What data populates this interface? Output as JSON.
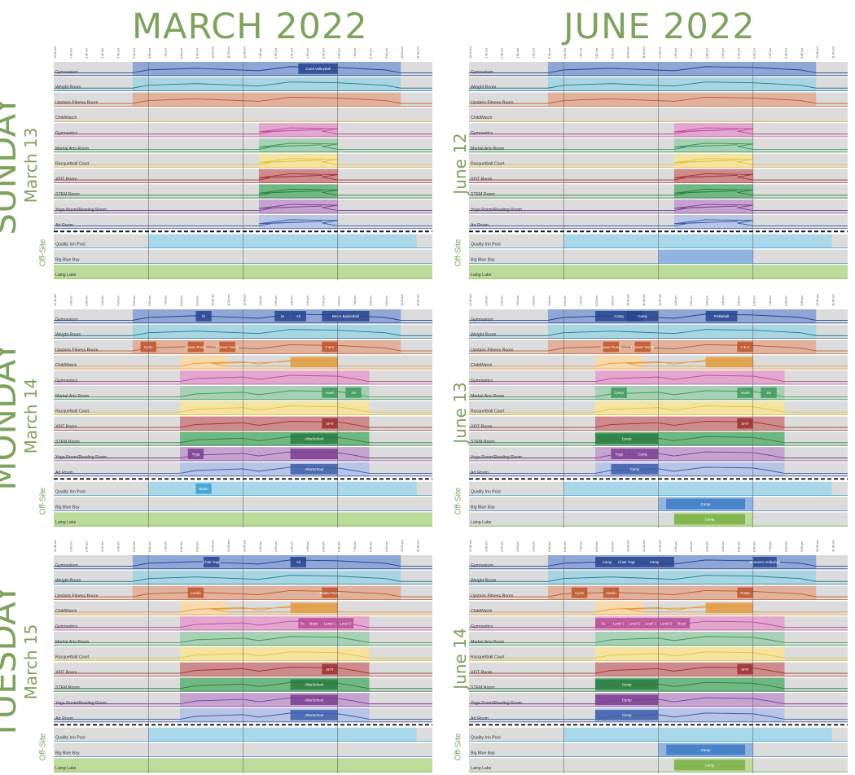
{
  "months": [
    {
      "label": "MARCH 2022"
    },
    {
      "label": "JUNE 2022"
    }
  ],
  "days": [
    {
      "name": "SUNDAY",
      "march_date": "March 13",
      "june_date": "June 12"
    },
    {
      "name": "MONDAY",
      "march_date": "March 14",
      "june_date": "June 13"
    },
    {
      "name": "TUESDAY",
      "march_date": "March 15",
      "june_date": "June 14"
    }
  ],
  "offsite_label": "Off-Site",
  "colors": {
    "gym": "#8ea7d6",
    "gym_dark": "#27448e",
    "weight": "#a8d5e2",
    "weight_dark": "#1e7a96",
    "fitness": "#e0b29c",
    "fitness_dark": "#c0542a",
    "childwatch": "#f7d9ab",
    "childwatch_dark": "#e39b3c",
    "gymnastics": "#e3a6cf",
    "gymnastics_dark": "#b84c95",
    "martial": "#a7d0b5",
    "martial_dark": "#3e9a5c",
    "racquet": "#f4e4a0",
    "racquet_dark": "#e2c23c",
    "xfit": "#cf8b8b",
    "xfit_dark": "#9e2f2f",
    "stem": "#6fb882",
    "stem_dark": "#2c7a41",
    "yoga": "#c5a3d0",
    "yoga_dark": "#7a3e91",
    "art": "#b7c5e6",
    "art_dark": "#3d5da8",
    "pool": "#a8d8ea",
    "pool_dark": "#3aa0d0",
    "bay": "#8fb5e0",
    "bay_dark": "#3d7ac4",
    "lake": "#bcdc9c",
    "lake_dark": "#7ab045",
    "row_bg": "#dcdcdc",
    "title_green": "#7da35c"
  },
  "chart_data": {
    "type": "timeline",
    "time_axis": {
      "start_hour": 0,
      "end_hour": 24,
      "tick_labels": [
        "12:00 am",
        "1:00 am",
        "2:00 am",
        "3:00 am",
        "4:00 am",
        "5:00 am",
        "6:00 am",
        "7:00 am",
        "8:00 am",
        "9:00 am",
        "10:00 am",
        "11:00 am",
        "12:00 pm",
        "1:00 pm",
        "2:00 pm",
        "3:00 pm",
        "4:00 pm",
        "5:00 pm",
        "6:00 pm",
        "7:00 pm",
        "8:00 pm",
        "9:00 pm",
        "10:00 pm",
        "11:00 pm"
      ]
    },
    "rooms": [
      {
        "key": "gym",
        "label": "Gymnasium"
      },
      {
        "key": "weight",
        "label": "Weight Room"
      },
      {
        "key": "fitness",
        "label": "Upstairs Fitness Room"
      },
      {
        "key": "childwatch",
        "label": "ChildWatch"
      },
      {
        "key": "gymnastics",
        "label": "Gymnastics"
      },
      {
        "key": "martial",
        "label": "Martial Arts Room"
      },
      {
        "key": "racquet",
        "label": "Racquetball Court"
      },
      {
        "key": "xfit",
        "label": "XFIT Room"
      },
      {
        "key": "stem",
        "label": "STEM Room"
      },
      {
        "key": "yoga",
        "label": "Yoga Room/Reading Room"
      },
      {
        "key": "art",
        "label": "Art Room"
      },
      {
        "key": "pool",
        "label": "Quality Inn Pool",
        "offsite": true
      },
      {
        "key": "bay",
        "label": "Big Blue Bay",
        "offsite": true
      },
      {
        "key": "lake",
        "label": "Laing Lake",
        "offsite": true
      }
    ],
    "panels": [
      {
        "month": 0,
        "day": 0,
        "open": {
          "gym": [
            5,
            22
          ],
          "weight": [
            5,
            22
          ],
          "fitness": [
            5,
            22
          ],
          "gymnastics": [
            13,
            18
          ],
          "martial": [
            13,
            18
          ],
          "racquet": [
            13,
            18
          ],
          "xfit": [
            13,
            18
          ],
          "stem": [
            13,
            18
          ],
          "yoga": [
            13,
            18
          ],
          "art": [
            13,
            18
          ],
          "pool": [
            6,
            23
          ],
          "lake": [
            0,
            24
          ]
        },
        "programs": [
          {
            "room": "gym",
            "start": 15.5,
            "end": 18,
            "label": "Coed Volleyball"
          }
        ]
      },
      {
        "month": 1,
        "day": 0,
        "open": {
          "gym": [
            5,
            22
          ],
          "weight": [
            5,
            22
          ],
          "fitness": [
            5,
            22
          ],
          "gymnastics": [
            13,
            18
          ],
          "martial": [
            13,
            18
          ],
          "racquet": [
            13,
            18
          ],
          "xfit": [
            13,
            18
          ],
          "stem": [
            13,
            18
          ],
          "yoga": [
            13,
            18
          ],
          "art": [
            13,
            18
          ],
          "pool": [
            6,
            23
          ],
          "bay": [
            12,
            18
          ],
          "lake": [
            0,
            24
          ]
        },
        "programs": []
      },
      {
        "month": 0,
        "day": 1,
        "open": {
          "gym": [
            5,
            22
          ],
          "weight": [
            5,
            22
          ],
          "fitness": [
            5,
            22
          ],
          "childwatch": [
            8,
            11
          ],
          "gymnastics": [
            8,
            20
          ],
          "martial": [
            8,
            20
          ],
          "racquet": [
            8,
            20
          ],
          "xfit": [
            8,
            20
          ],
          "stem": [
            8,
            20
          ],
          "yoga": [
            8,
            20
          ],
          "art": [
            8,
            20
          ],
          "pool": [
            6,
            23
          ],
          "lake": [
            0,
            24
          ]
        },
        "programs": [
          {
            "room": "gym",
            "start": 9,
            "end": 10,
            "label": "Sr"
          },
          {
            "room": "gym",
            "start": 14,
            "end": 15,
            "label": "Sr"
          },
          {
            "room": "gym",
            "start": 15,
            "end": 16,
            "label": "All"
          },
          {
            "room": "gym",
            "start": 17,
            "end": 20,
            "label": "Men's Basketball"
          },
          {
            "room": "fitness",
            "start": 5.5,
            "end": 6.5,
            "label": "Cycle"
          },
          {
            "room": "fitness",
            "start": 8.5,
            "end": 9.5,
            "label": "Power Pump"
          },
          {
            "room": "fitness",
            "start": 10.5,
            "end": 11.5,
            "label": "Forever Young"
          },
          {
            "room": "fitness",
            "start": 17,
            "end": 18,
            "label": "T & C"
          },
          {
            "room": "childwatch",
            "start": 15,
            "end": 18,
            "label": ""
          },
          {
            "room": "martial",
            "start": 17,
            "end": 18,
            "label": "Youth"
          },
          {
            "room": "martial",
            "start": 18.5,
            "end": 19.5,
            "label": "Jiu"
          },
          {
            "room": "xfit",
            "start": 17,
            "end": 18,
            "label": "XFIT"
          },
          {
            "room": "stem",
            "start": 15,
            "end": 18,
            "label": "AfterSchool"
          },
          {
            "room": "yoga",
            "start": 8.5,
            "end": 9.5,
            "label": "Yoga"
          },
          {
            "room": "yoga",
            "start": 15,
            "end": 18,
            "label": ""
          },
          {
            "room": "art",
            "start": 15,
            "end": 18,
            "label": "AfterSchool"
          },
          {
            "room": "pool",
            "start": 9,
            "end": 10,
            "label": "Water"
          }
        ]
      },
      {
        "month": 1,
        "day": 1,
        "open": {
          "gym": [
            5,
            22
          ],
          "weight": [
            5,
            22
          ],
          "fitness": [
            5,
            22
          ],
          "childwatch": [
            8,
            11
          ],
          "gymnastics": [
            8,
            20
          ],
          "martial": [
            8,
            20
          ],
          "racquet": [
            8,
            20
          ],
          "xfit": [
            8,
            20
          ],
          "stem": [
            8,
            20
          ],
          "yoga": [
            8,
            20
          ],
          "art": [
            8,
            20
          ],
          "pool": [
            6,
            23
          ],
          "bay": [
            12,
            18
          ],
          "lake": [
            13,
            18
          ]
        },
        "programs": [
          {
            "room": "gym",
            "start": 8,
            "end": 11,
            "label": "Camp"
          },
          {
            "room": "gym",
            "start": 10,
            "end": 12,
            "label": "Camp"
          },
          {
            "room": "gym",
            "start": 15,
            "end": 17,
            "label": "Pickleball"
          },
          {
            "room": "fitness",
            "start": 8.5,
            "end": 9.5,
            "label": "Power Pump"
          },
          {
            "room": "fitness",
            "start": 10.5,
            "end": 11.5,
            "label": "Forever Young"
          },
          {
            "room": "fitness",
            "start": 17,
            "end": 18,
            "label": "T & C"
          },
          {
            "room": "childwatch",
            "start": 15,
            "end": 18,
            "label": ""
          },
          {
            "room": "martial",
            "start": 9,
            "end": 10,
            "label": "Camp"
          },
          {
            "room": "martial",
            "start": 17,
            "end": 18,
            "label": "Youth"
          },
          {
            "room": "martial",
            "start": 18.5,
            "end": 19.5,
            "label": "Jiu"
          },
          {
            "room": "xfit",
            "start": 17,
            "end": 18,
            "label": "XFIT"
          },
          {
            "room": "stem",
            "start": 8,
            "end": 12,
            "label": "Camp"
          },
          {
            "room": "yoga",
            "start": 9,
            "end": 10,
            "label": "Yoga"
          },
          {
            "room": "yoga",
            "start": 10,
            "end": 12,
            "label": "Camp"
          },
          {
            "room": "art",
            "start": 9,
            "end": 12,
            "label": "Camp"
          },
          {
            "room": "bay",
            "start": 12.5,
            "end": 17.5,
            "label": "Camp"
          },
          {
            "room": "lake",
            "start": 13,
            "end": 17.5,
            "label": "Camp"
          }
        ]
      },
      {
        "month": 0,
        "day": 2,
        "open": {
          "gym": [
            5,
            22
          ],
          "weight": [
            5,
            22
          ],
          "fitness": [
            5,
            22
          ],
          "childwatch": [
            8,
            11
          ],
          "gymnastics": [
            8,
            20
          ],
          "martial": [
            8,
            20
          ],
          "racquet": [
            8,
            20
          ],
          "xfit": [
            8,
            20
          ],
          "stem": [
            8,
            20
          ],
          "yoga": [
            8,
            20
          ],
          "art": [
            8,
            20
          ],
          "pool": [
            6,
            23
          ],
          "lake": [
            0,
            24
          ]
        },
        "programs": [
          {
            "room": "gym",
            "start": 9.5,
            "end": 10.5,
            "label": "Chair Yoga"
          },
          {
            "room": "gym",
            "start": 15,
            "end": 16,
            "label": "All"
          },
          {
            "room": "fitness",
            "start": 8.5,
            "end": 9.5,
            "label": "Cardio"
          },
          {
            "room": "fitness",
            "start": 17,
            "end": 18,
            "label": "Power Pump"
          },
          {
            "room": "childwatch",
            "start": 15,
            "end": 18,
            "label": ""
          },
          {
            "room": "gymnastics",
            "start": 15.5,
            "end": 16,
            "label": "Tu"
          },
          {
            "room": "gymnastics",
            "start": 16,
            "end": 17,
            "label": "Boys'"
          },
          {
            "room": "gymnastics",
            "start": 17,
            "end": 18,
            "label": "Level 1"
          },
          {
            "room": "gymnastics",
            "start": 18,
            "end": 19,
            "label": "Level 2"
          },
          {
            "room": "xfit",
            "start": 17,
            "end": 18,
            "label": "XFIT"
          },
          {
            "room": "stem",
            "start": 15,
            "end": 18,
            "label": "AfterSchool"
          },
          {
            "room": "yoga",
            "start": 15,
            "end": 18,
            "label": "AfterSchool"
          },
          {
            "room": "art",
            "start": 15,
            "end": 18,
            "label": "AfterSchool"
          }
        ]
      },
      {
        "month": 1,
        "day": 2,
        "open": {
          "gym": [
            5,
            22
          ],
          "weight": [
            5,
            22
          ],
          "fitness": [
            5,
            22
          ],
          "childwatch": [
            8,
            11
          ],
          "gymnastics": [
            8,
            20
          ],
          "martial": [
            8,
            20
          ],
          "racquet": [
            8,
            20
          ],
          "xfit": [
            8,
            20
          ],
          "stem": [
            8,
            20
          ],
          "yoga": [
            8,
            20
          ],
          "art": [
            8,
            20
          ],
          "pool": [
            6,
            23
          ],
          "bay": [
            12,
            18
          ],
          "lake": [
            13,
            18
          ]
        },
        "programs": [
          {
            "room": "gym",
            "start": 8,
            "end": 9.5,
            "label": "Camp"
          },
          {
            "room": "gym",
            "start": 9.5,
            "end": 10.5,
            "label": "Chair Yoga"
          },
          {
            "room": "gym",
            "start": 10.5,
            "end": 13,
            "label": "Camp"
          },
          {
            "room": "gym",
            "start": 18,
            "end": 19.5,
            "label": "Women's Volleyball"
          },
          {
            "room": "fitness",
            "start": 6.5,
            "end": 7.5,
            "label": "Cycle"
          },
          {
            "room": "fitness",
            "start": 8.5,
            "end": 9.5,
            "label": "Cardio"
          },
          {
            "room": "fitness",
            "start": 17,
            "end": 18,
            "label": "Pump"
          },
          {
            "room": "childwatch",
            "start": 15,
            "end": 18,
            "label": ""
          },
          {
            "room": "gymnastics",
            "start": 8,
            "end": 9,
            "label": "Tu"
          },
          {
            "room": "gymnastics",
            "start": 9,
            "end": 10,
            "label": "Level 1"
          },
          {
            "room": "gymnastics",
            "start": 10,
            "end": 11,
            "label": "Level 2"
          },
          {
            "room": "gymnastics",
            "start": 11,
            "end": 12,
            "label": "Level 3"
          },
          {
            "room": "gymnastics",
            "start": 12,
            "end": 13,
            "label": "Level 2"
          },
          {
            "room": "gymnastics",
            "start": 13,
            "end": 14,
            "label": "Boys'"
          },
          {
            "room": "xfit",
            "start": 17,
            "end": 18,
            "label": "XFIT"
          },
          {
            "room": "stem",
            "start": 8,
            "end": 12,
            "label": "Camp"
          },
          {
            "room": "yoga",
            "start": 8,
            "end": 12,
            "label": "Camp"
          },
          {
            "room": "art",
            "start": 8,
            "end": 12,
            "label": "Camp"
          },
          {
            "room": "bay",
            "start": 12.5,
            "end": 17.5,
            "label": "Camp"
          },
          {
            "room": "lake",
            "start": 13,
            "end": 17.5,
            "label": "Camp"
          }
        ]
      }
    ]
  }
}
